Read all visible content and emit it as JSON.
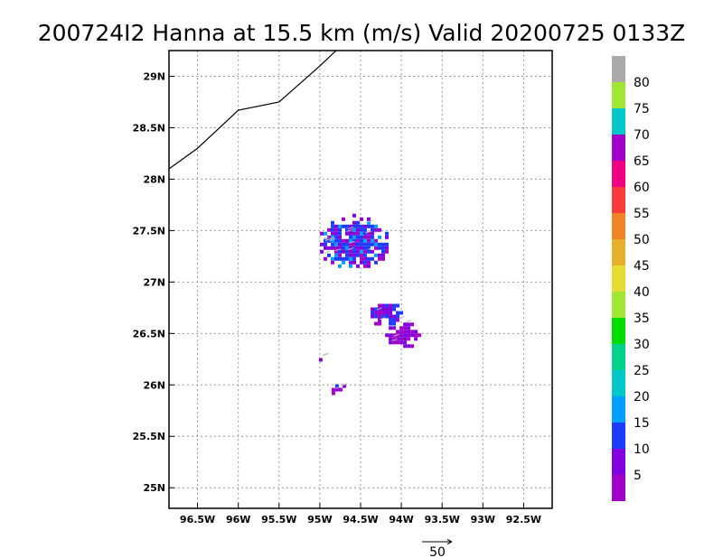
{
  "title": "200724I2 Hanna at 15.5 km (m/s) Valid 20200725 0133Z",
  "map": {
    "lon_range": [
      -96.85,
      -92.15
    ],
    "lat_range": [
      24.8,
      29.25
    ],
    "lon_ticks": [
      {
        "value": -96.5,
        "label": "96.5W"
      },
      {
        "value": -96.0,
        "label": "96W"
      },
      {
        "value": -95.5,
        "label": "95.5W"
      },
      {
        "value": -95.0,
        "label": "95W"
      },
      {
        "value": -94.5,
        "label": "94.5W"
      },
      {
        "value": -94.0,
        "label": "94W"
      },
      {
        "value": -93.5,
        "label": "93.5W"
      },
      {
        "value": -93.0,
        "label": "93W"
      },
      {
        "value": -92.5,
        "label": "92.5W"
      }
    ],
    "lat_ticks": [
      {
        "value": 25.0,
        "label": "25N"
      },
      {
        "value": 25.5,
        "label": "25.5N"
      },
      {
        "value": 26.0,
        "label": "26N"
      },
      {
        "value": 26.5,
        "label": "26.5N"
      },
      {
        "value": 27.0,
        "label": "27N"
      },
      {
        "value": 27.5,
        "label": "27.5N"
      },
      {
        "value": 28.0,
        "label": "28N"
      },
      {
        "value": 28.5,
        "label": "28.5N"
      },
      {
        "value": 29.0,
        "label": "29N"
      }
    ],
    "grid": true,
    "coastline": [
      [
        -96.85,
        28.1
      ],
      [
        -96.5,
        28.3
      ],
      [
        -96.0,
        28.67
      ],
      [
        -95.5,
        28.75
      ],
      [
        -95.0,
        29.1
      ],
      [
        -94.8,
        29.25
      ]
    ]
  },
  "wind_field": {
    "units": "m/s",
    "patches": [
      {
        "name": "northern-cluster",
        "lon": -94.6,
        "lat": 27.4,
        "color_level": "10-15"
      },
      {
        "name": "central-cluster",
        "lon": -94.2,
        "lat": 26.7,
        "color_level": "5-10"
      },
      {
        "name": "eastern-cluster",
        "lon": -94.0,
        "lat": 26.5,
        "color_level": "0-5"
      },
      {
        "name": "southern-cluster",
        "lon": -94.8,
        "lat": 25.98,
        "color_level": "5-10"
      },
      {
        "name": "west-small-patch",
        "lon": -95.0,
        "lat": 26.27,
        "color_level": "5-10"
      }
    ]
  },
  "vector_key": {
    "label": "50"
  },
  "colorbar": {
    "levels": [
      {
        "color": "#a000c8",
        "label": "5"
      },
      {
        "color": "#8200dc",
        "label": "10"
      },
      {
        "color": "#1e3cff",
        "label": "15"
      },
      {
        "color": "#00a0ff",
        "label": "20"
      },
      {
        "color": "#00c8c8",
        "label": "25"
      },
      {
        "color": "#00d28c",
        "label": "30"
      },
      {
        "color": "#00dc00",
        "label": "35"
      },
      {
        "color": "#a0e632",
        "label": "40"
      },
      {
        "color": "#e6dc32",
        "label": "45"
      },
      {
        "color": "#e6af2d",
        "label": "50"
      },
      {
        "color": "#f08228",
        "label": "55"
      },
      {
        "color": "#fa3c3c",
        "label": "60"
      },
      {
        "color": "#f00082",
        "label": "65"
      },
      {
        "color": "#a000c8",
        "label": "70"
      },
      {
        "color": "#00c8c8",
        "label": "75"
      },
      {
        "color": "#a0e632",
        "label": "80"
      },
      {
        "color": "#aaaaaa",
        "label": ""
      }
    ]
  }
}
